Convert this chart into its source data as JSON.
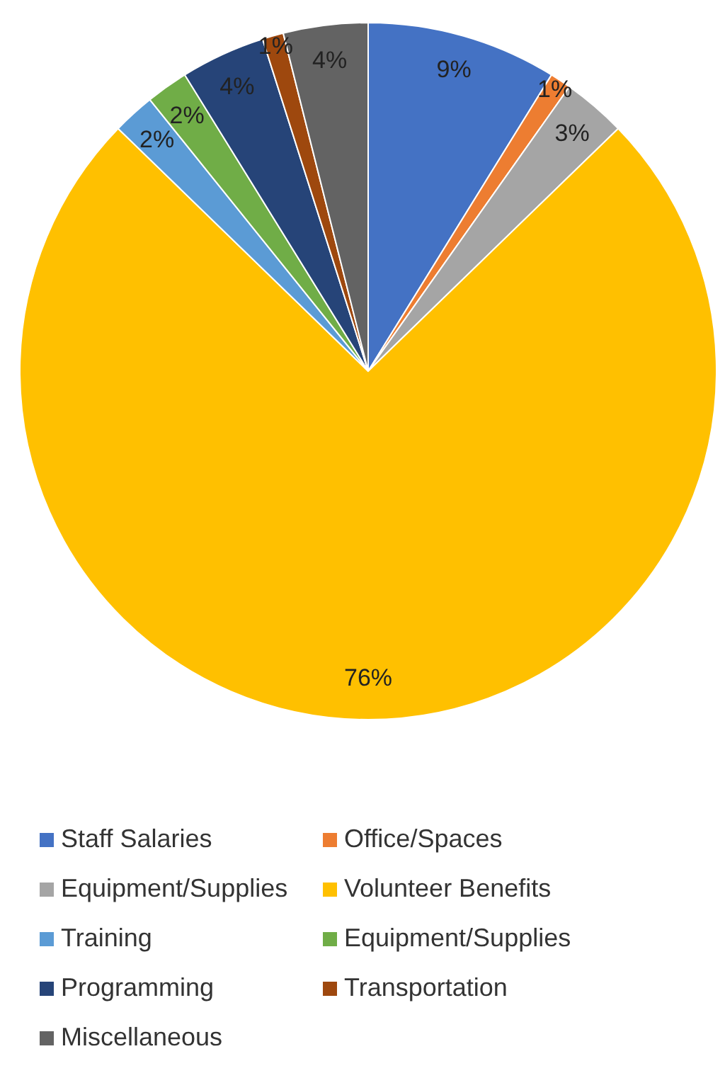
{
  "chart_data": {
    "type": "pie",
    "categories": [
      "Staff Salaries",
      "Office/Spaces",
      "Equipment/Supplies",
      "Volunteer Benefits",
      "Training",
      "Equipment/Supplies",
      "Programming",
      "Transportation",
      "Miscellaneous"
    ],
    "values": [
      9,
      1,
      3,
      76,
      2,
      2,
      4,
      1,
      4
    ],
    "value_labels": [
      "9%",
      "1%",
      "3%",
      "76%",
      "2%",
      "2%",
      "4%",
      "1%",
      "4%"
    ],
    "colors": [
      "#4472c4",
      "#ed7d31",
      "#a5a5a5",
      "#ffc000",
      "#5b9bd5",
      "#70ad47",
      "#264478",
      "#9e480e",
      "#636363"
    ],
    "legend": "bottom"
  }
}
